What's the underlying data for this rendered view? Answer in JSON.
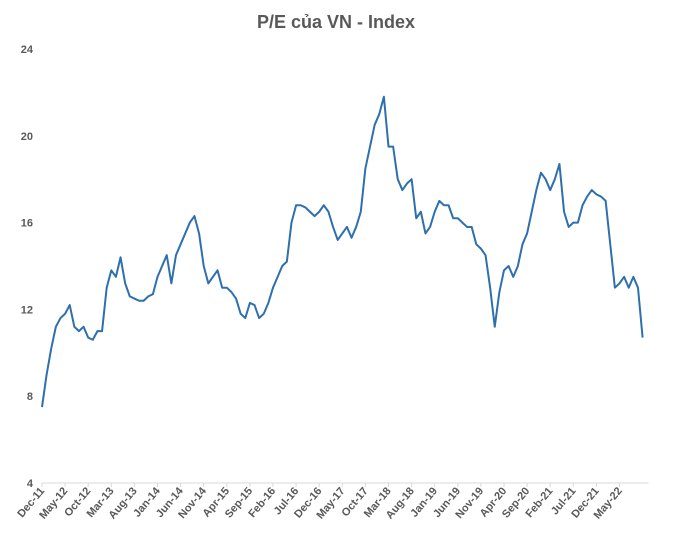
{
  "chart_data": {
    "type": "line",
    "title": "P/E của VN - Index",
    "categories": [
      "Dec-11",
      null,
      null,
      null,
      null,
      "May-12",
      null,
      null,
      null,
      null,
      "Oct-12",
      null,
      null,
      null,
      null,
      "Mar-13",
      null,
      null,
      null,
      null,
      "Aug-13",
      null,
      null,
      null,
      null,
      "Jan-14",
      null,
      null,
      null,
      null,
      "Jun-14",
      null,
      null,
      null,
      null,
      "Nov-14",
      null,
      null,
      null,
      null,
      "Apr-15",
      null,
      null,
      null,
      null,
      "Sep-15",
      null,
      null,
      null,
      null,
      "Feb-16",
      null,
      null,
      null,
      null,
      "Jul-16",
      null,
      null,
      null,
      null,
      "Dec-16",
      null,
      null,
      null,
      null,
      "May-17",
      null,
      null,
      null,
      null,
      "Oct-17",
      null,
      null,
      null,
      null,
      "Mar-18",
      null,
      null,
      null,
      null,
      "Aug-18",
      null,
      null,
      null,
      null,
      "Jan-19",
      null,
      null,
      null,
      null,
      "Jun-19",
      null,
      null,
      null,
      null,
      "Nov-19",
      null,
      null,
      null,
      null,
      "Apr-20",
      null,
      null,
      null,
      null,
      "Sep-20",
      null,
      null,
      null,
      null,
      "Feb-21",
      null,
      null,
      null,
      null,
      "Jul-21",
      null,
      null,
      null,
      null,
      "Dec-21",
      null,
      null,
      null,
      null,
      "May-22",
      null,
      null,
      null,
      null,
      null
    ],
    "series": [
      {
        "name": "P/E",
        "color": "#2e6fad",
        "values": [
          7.5,
          9,
          10.2,
          11.2,
          11.6,
          11.8,
          12.2,
          11.2,
          11.0,
          11.2,
          10.7,
          10.6,
          11.0,
          11.0,
          13.0,
          13.8,
          13.5,
          14.4,
          13.2,
          12.6,
          12.5,
          12.4,
          12.4,
          12.6,
          12.7,
          13.5,
          14.0,
          14.5,
          13.2,
          14.5,
          15.0,
          15.5,
          16.0,
          16.3,
          15.5,
          14.0,
          13.2,
          13.5,
          13.8,
          13.0,
          13.0,
          12.8,
          12.5,
          11.8,
          11.6,
          12.3,
          12.2,
          11.6,
          11.8,
          12.3,
          13.0,
          13.5,
          14.0,
          14.2,
          16.0,
          16.8,
          16.8,
          16.7,
          16.5,
          16.3,
          16.5,
          16.8,
          16.5,
          15.8,
          15.2,
          15.5,
          15.8,
          15.3,
          15.8,
          16.5,
          18.5,
          19.5,
          20.5,
          21.0,
          21.8,
          19.5,
          19.5,
          18.0,
          17.5,
          17.8,
          18.0,
          16.2,
          16.5,
          15.5,
          15.8,
          16.5,
          17.0,
          16.8,
          16.8,
          16.2,
          16.2,
          16.0,
          15.8,
          15.8,
          15.0,
          14.8,
          14.5,
          13.0,
          11.2,
          12.8,
          13.8,
          14.0,
          13.5,
          14.0,
          15.0,
          15.5,
          16.5,
          17.5,
          18.3,
          18.0,
          17.5,
          18.0,
          18.7,
          16.5,
          15.8,
          16.0,
          16.0,
          16.8,
          17.2,
          17.5,
          17.3,
          17.2,
          17.0,
          15.0,
          13.0,
          13.2,
          13.5,
          13.0,
          13.5,
          13.0,
          10.7
        ]
      }
    ],
    "ylim": [
      4,
      24
    ],
    "yticks": [
      4,
      8,
      12,
      16,
      20,
      24
    ]
  }
}
